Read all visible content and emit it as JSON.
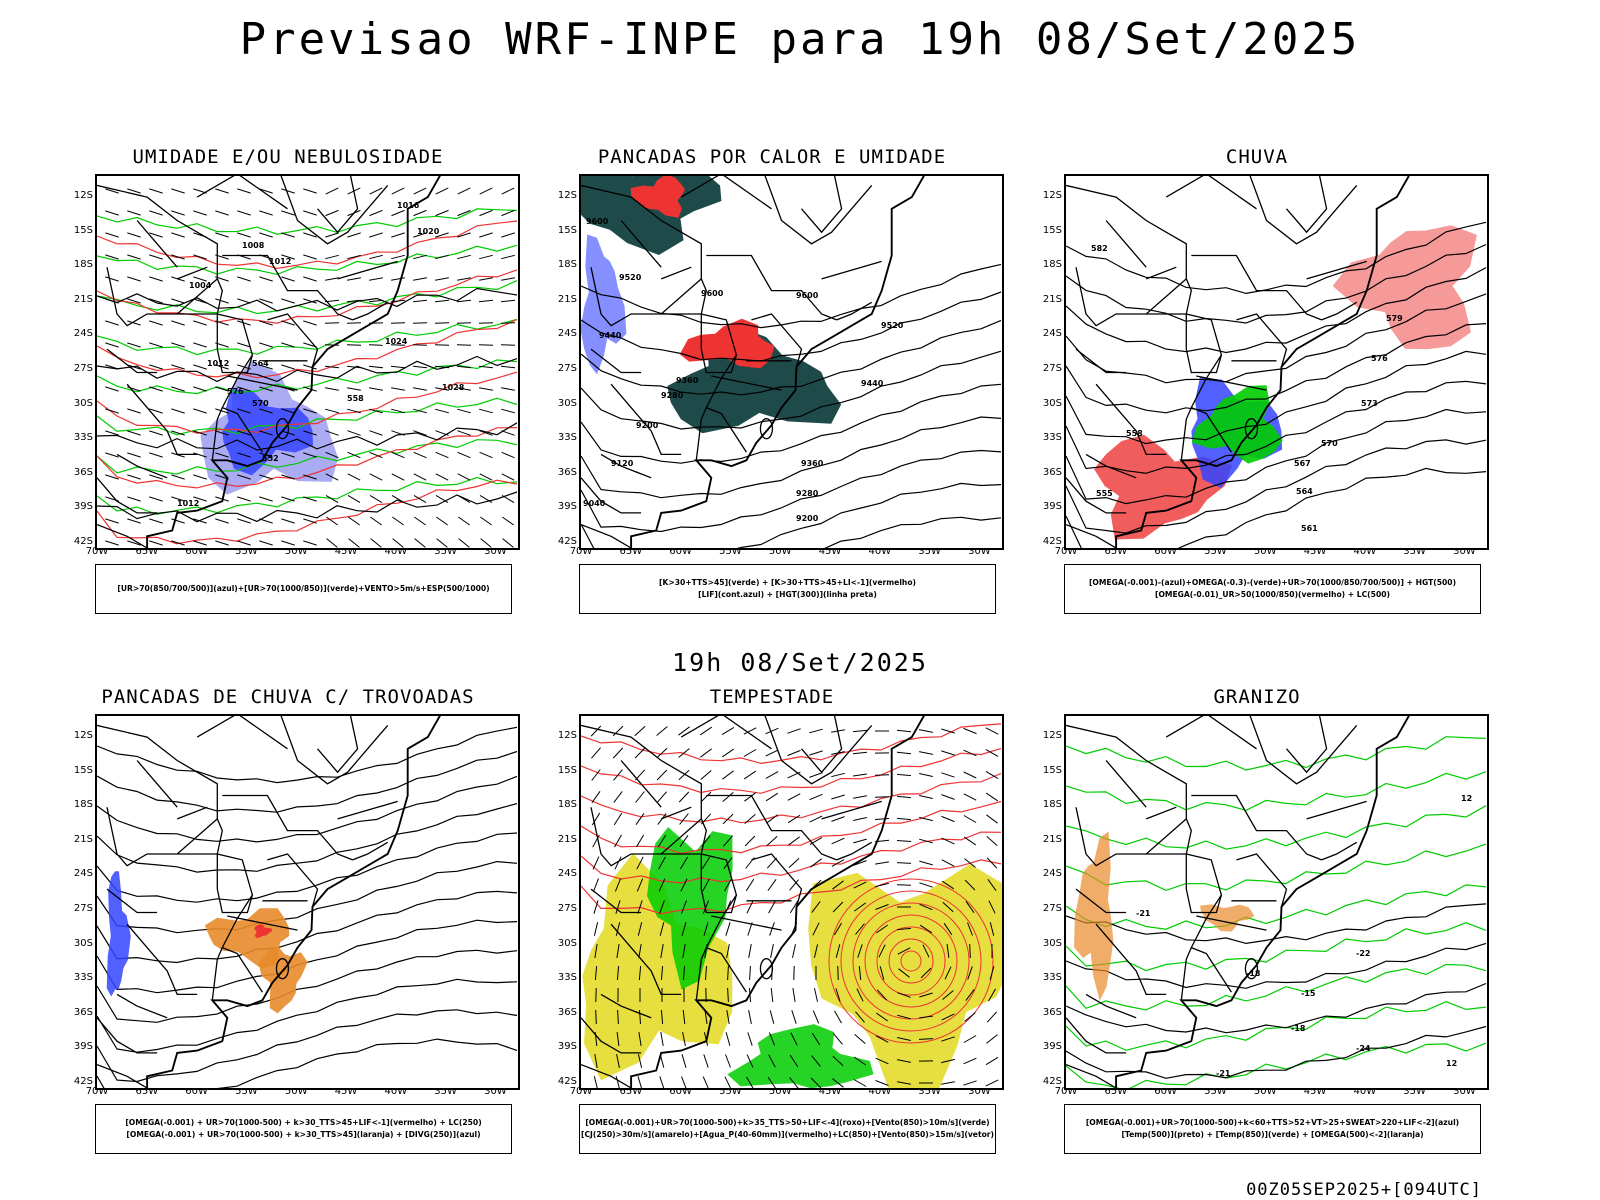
{
  "header": {
    "title": "Previsao WRF-INPE  para 19h 08/Set/2025"
  },
  "mid_title": "19h 08/Set/2025",
  "footer": "00Z05SEP2025+[094UTC]",
  "axes": {
    "lat_ticks": [
      "12S",
      "15S",
      "18S",
      "21S",
      "24S",
      "27S",
      "30S",
      "33S",
      "36S",
      "39S",
      "42S"
    ],
    "lon_ticks": [
      "70W",
      "65W",
      "60W",
      "55W",
      "50W",
      "45W",
      "40W",
      "35W",
      "30W"
    ]
  },
  "colors": {
    "green": "#00cc00",
    "blue": "#3344ff",
    "light_blue": "#8888ee",
    "red": "#ee3333",
    "orange": "#e88a2a",
    "yellow": "#e3dc2a",
    "dark_teal": "#1f4a4a",
    "black": "#000000"
  },
  "panels": [
    {
      "title": "UMIDADE E/OU NEBULOSIDADE",
      "legend": [
        "[UR>70(850/700/500)](azul)+[UR>70(1000/850)](verde)+VENTO>5m/s+ESP(500/1000)"
      ],
      "contour_labels": [
        "1016",
        "1020",
        "1012",
        "1008",
        "1004",
        "1024",
        "1028",
        "1012",
        "576",
        "570",
        "564",
        "558",
        "552",
        "1012"
      ]
    },
    {
      "title": "PANCADAS POR CALOR E UMIDADE",
      "legend": [
        "[K>30+TTS>45](verde) + [K>30+TTS>45+LI<-1](vermelho)",
        "[LIF](cont.azul) + [HGT(300)](linha preta)"
      ],
      "contour_labels": [
        "9600",
        "9520",
        "9600",
        "9440",
        "9600",
        "9360",
        "9520",
        "9280",
        "9440",
        "9200",
        "9120",
        "9360",
        "9040",
        "9280",
        "9200"
      ]
    },
    {
      "title": "CHUVA",
      "legend": [
        "[OMEGA(-0.001)-(azul)+OMEGA(-0.3)-(verde)+UR>70(1000/850/700/500)] + HGT(500)",
        "[OMEGA(-0.01)_UR>50(1000/850)(vermelho) + LC(500)"
      ],
      "contour_labels": [
        "582",
        "579",
        "576",
        "573",
        "570",
        "567",
        "564",
        "561",
        "558",
        "555"
      ]
    },
    {
      "title": "PANCADAS DE CHUVA C/ TROVOADAS",
      "legend": [
        "[OMEGA(-0.001) + UR>70(1000-500) + k>30_TTS>45+LIF<-1](vermelho) + LC(250)",
        "[OMEGA(-0.001) + UR>70(1000-500) + k>30_TTS>45](laranja) + [DIVG(250)](azul)"
      ],
      "contour_labels": []
    },
    {
      "title": "TEMPESTADE",
      "legend": [
        "[OMEGA(-0.001)+UR>70(1000-500)+k>35_TTS>50+LIF<-4](roxo)+[Vento(850)>10m/s](verde)",
        "[CJ(250)>30m/s](amarelo)+[Agua_P(40-60mm)](vermelho)+LC(850)+[Vento(850)>15m/s](vetor)"
      ],
      "contour_labels": []
    },
    {
      "title": "GRANIZO",
      "legend": [
        "[OMEGA(-0.001)+UR>70(1000-500)+k<60+TTS>52+VT>25+SWEAT>220+LIF<-2](azul)",
        "[Temp(500)](preto) + [Temp(850)](verde) + [OMEGA(500)<-2](laranja)"
      ],
      "contour_labels": [
        "-21",
        "-18",
        "-15",
        "-18",
        "-24",
        "-21",
        "12",
        "-22",
        "12"
      ]
    }
  ]
}
